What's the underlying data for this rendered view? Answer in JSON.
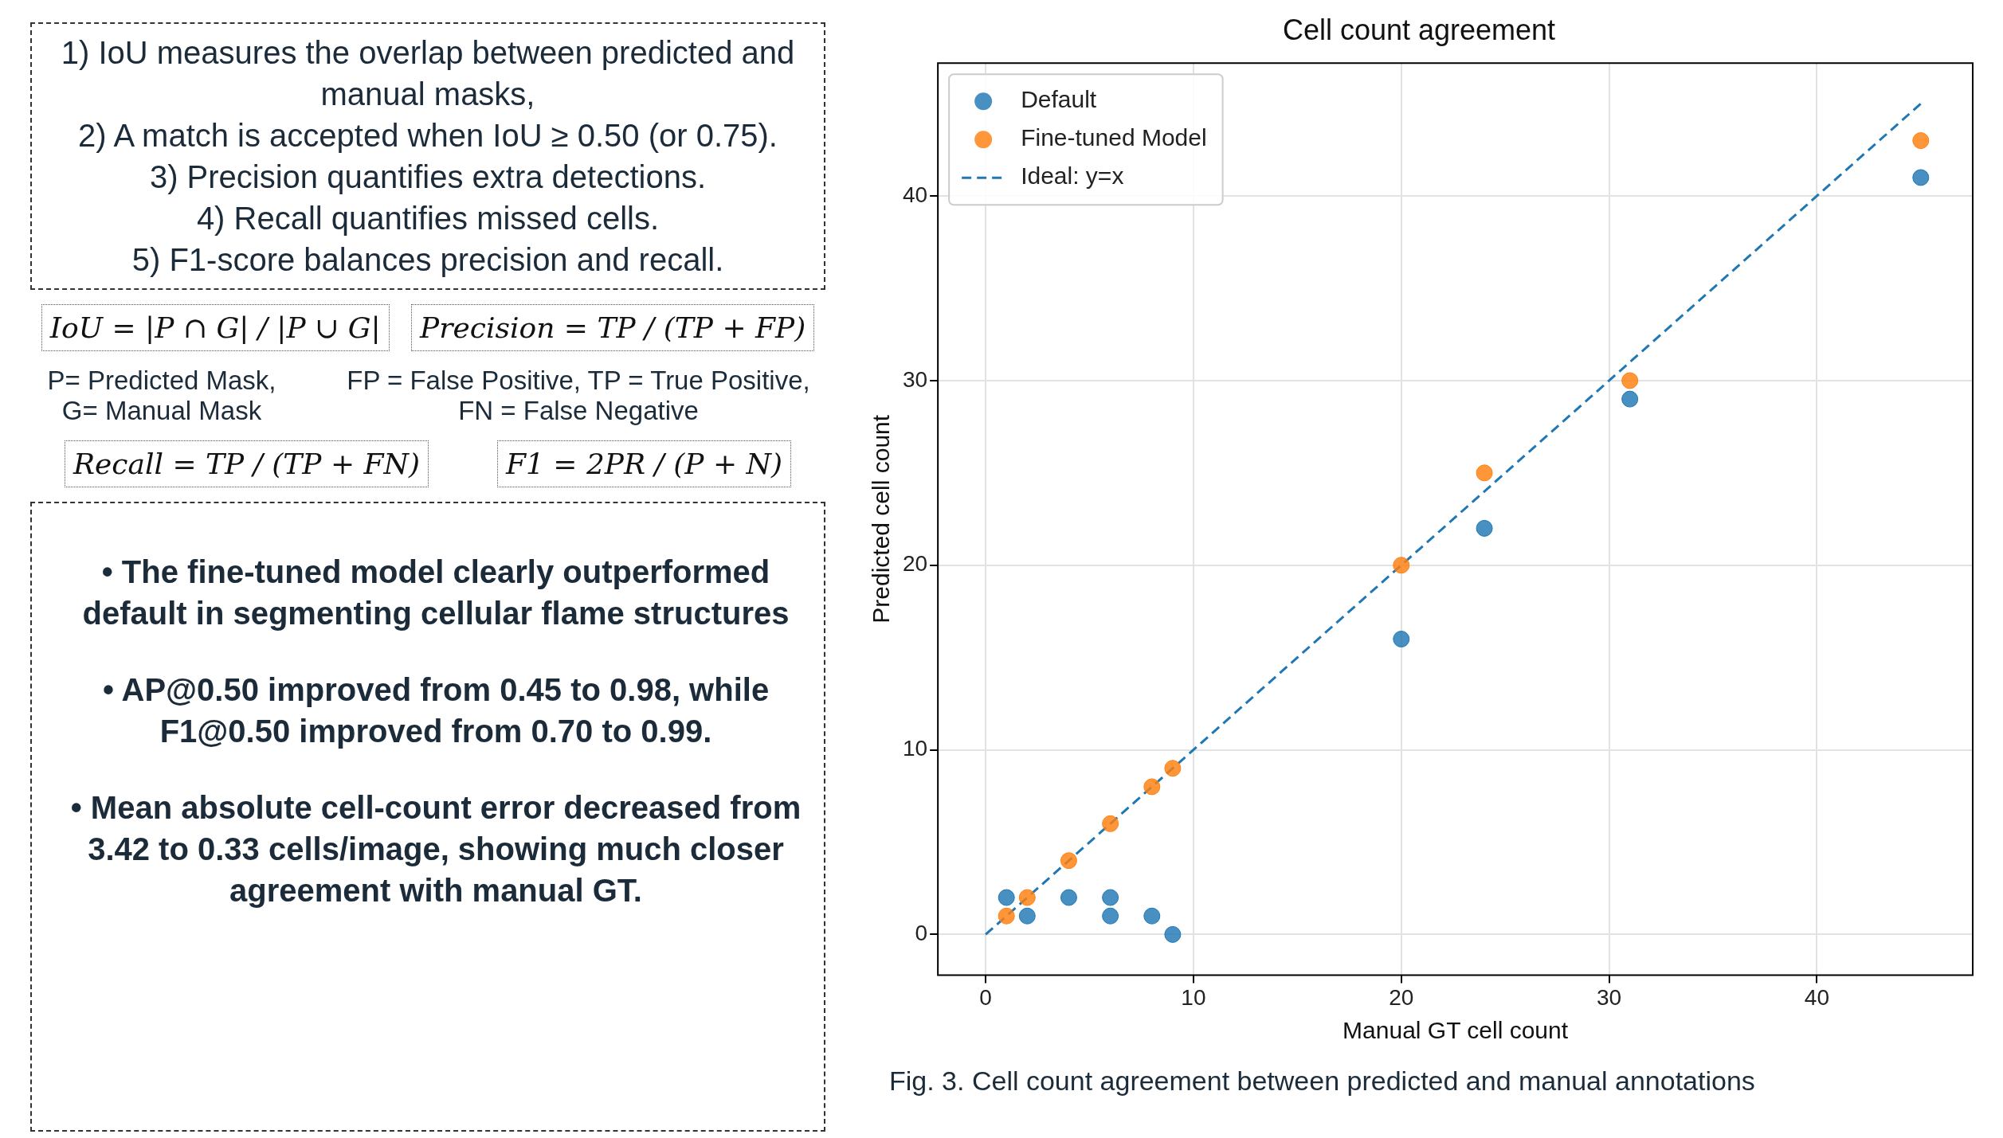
{
  "chart_data": {
    "type": "scatter",
    "title": "Cell count agreement",
    "xlabel": "Manual GT cell count",
    "ylabel": "Predicted cell count",
    "xlim": [
      -2.3,
      47.5
    ],
    "ylim": [
      -2.2,
      47.2
    ],
    "xticks": [
      0,
      10,
      20,
      30,
      40
    ],
    "yticks": [
      0,
      10,
      20,
      30,
      40
    ],
    "grid": true,
    "legend": "top left",
    "marker": "circle",
    "series": [
      {
        "name": "Default",
        "color": "#1f77b4",
        "x": [
          1,
          2,
          4,
          6,
          6,
          8,
          9,
          20,
          24,
          31,
          45
        ],
        "values": [
          2,
          1,
          2,
          2,
          1,
          1,
          0,
          16,
          22,
          29,
          41
        ]
      },
      {
        "name": "Fine-tuned Model",
        "color": "#ff7f0e",
        "x": [
          1,
          2,
          4,
          6,
          8,
          9,
          20,
          24,
          31,
          45
        ],
        "values": [
          1,
          2,
          4,
          6,
          8,
          9,
          20,
          25,
          30,
          43
        ]
      },
      {
        "name": "Ideal: y=x",
        "type": "line",
        "line_style": "dashed",
        "marker": "none",
        "color": "#1f77b4",
        "x": [
          0,
          45
        ],
        "values": [
          0,
          45
        ]
      }
    ],
    "annotations": [
      "1) IoU measures the overlap between predicted and manual masks,",
      "2) A match is accepted when IoU ≥ 0.50 (or 0.75).",
      "3) Precision quantifies extra detections.",
      "4) Recall quantifies missed cells.",
      "5) F1-score balances precision and recall.",
      "IoU = |P ∩ G| / |P ∪ G|",
      "Precision = TP / (TP + FP)",
      "P= Predicted Mask, G= Manual Mask",
      "FP = False Positive, TP = True Positive, FN = False Negative",
      "Recall = TP / (TP + FN)",
      "F1 = 2PR / (P + N)",
      "• The fine-tuned model clearly outperformed default in segmenting cellular flame structures",
      "• AP@0.50 improved from 0.45 to 0.98, while F1@0.50 improved from 0.70 to 0.99.",
      "• Mean absolute cell-count error decreased from 3.42 to 0.33 cells/image, showing much closer agreement with manual GT.",
      "Fig. 3. Cell count agreement between predicted and manual annotations"
    ]
  }
}
